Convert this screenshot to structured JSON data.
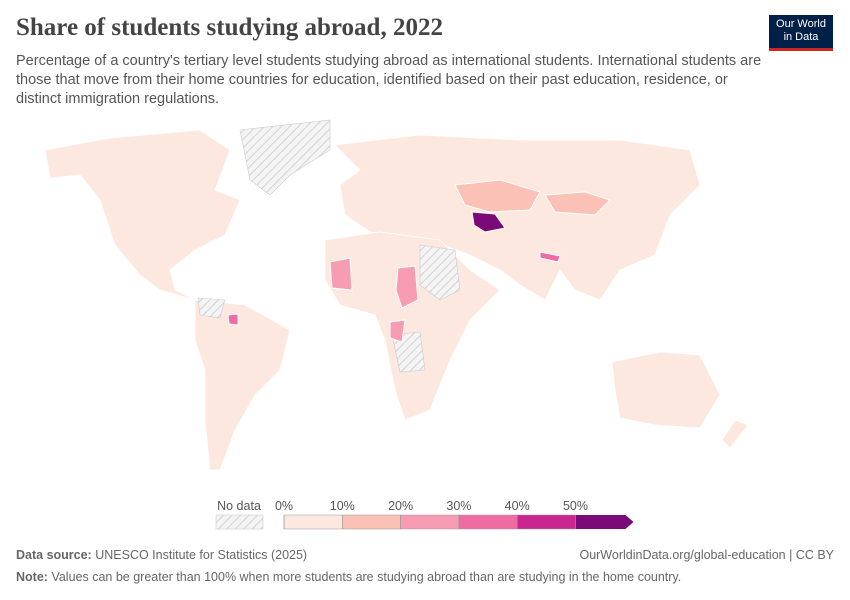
{
  "header": {
    "title": "Share of students studying abroad, 2022",
    "subtitle": "Percentage of a country's tertiary level students studying abroad as international students. International students are those that move from their home countries for education, identified based on their past education, residence, or distinct immigration regulations.",
    "logo": [
      "Our World",
      "in Data"
    ]
  },
  "legend": {
    "no_data": "No data",
    "ticks": [
      {
        "value": 0,
        "label": "0%"
      },
      {
        "value": 10,
        "label": "10%"
      },
      {
        "value": 20,
        "label": "20%"
      },
      {
        "value": 30,
        "label": "30%"
      },
      {
        "value": 40,
        "label": "40%"
      },
      {
        "value": 50,
        "label": "50%"
      }
    ],
    "colors": [
      "#fde8df",
      "#fbc0b6",
      "#f79cb2",
      "#ef6ba2",
      "#c9268f",
      "#7b0a78"
    ]
  },
  "footer": {
    "source_label": "Data source:",
    "source": "UNESCO Institute for Statistics (2025)",
    "url": "OurWorldinData.org/global-education | CC BY",
    "note_label": "Note:",
    "note": "Values can be greater than 100% when more students are studying abroad than are studying in the home country."
  }
}
